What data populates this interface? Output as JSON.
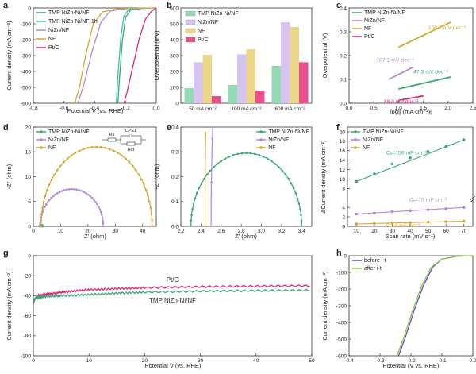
{
  "colors": {
    "tmp": "#3aa872",
    "nizn": "#b388d8",
    "nf": "#d4a72c",
    "ptc": "#e0257a",
    "tmp1h": "#39c2b8",
    "bar_tmp": "#92d9b4",
    "bar_nizn": "#d6c3ef",
    "bar_nf": "#ecd688",
    "bar_ptc": "#ec4f8f",
    "before": "#7b3fd6",
    "after": "#7fcf3a"
  },
  "chart_data": [
    {
      "id": "a",
      "panel_label": "a",
      "type": "line",
      "xlabel": "Potential V (vs. RHE)",
      "ylabel": "Current density (mA cm⁻²)",
      "xlim": [
        -0.8,
        0.0
      ],
      "ylim": [
        -600,
        0
      ],
      "xticks": [
        "-0.8",
        "-0.6",
        "-0.4",
        "-0.2",
        "0.0"
      ],
      "yticks": [
        "0",
        "-100",
        "-200",
        "-300",
        "-400",
        "-500",
        "-600"
      ],
      "legend": [
        "TMP NiZn-Ni/NF",
        "TMP NiZn-Ni/NF-1h",
        "NiZn/NF",
        "NF",
        "Pt/C"
      ],
      "series": [
        {
          "name": "TMP NiZn-Ni/NF",
          "color": "tmp",
          "x": [
            0.0,
            -0.1,
            -0.17,
            -0.2,
            -0.22,
            -0.24,
            -0.25
          ],
          "y": [
            0,
            -3,
            -15,
            -60,
            -200,
            -450,
            -600
          ]
        },
        {
          "name": "TMP NiZn-Ni/NF-1h",
          "color": "tmp1h",
          "x": [
            0.0,
            -0.12,
            -0.18,
            -0.21,
            -0.23,
            -0.25,
            -0.26
          ],
          "y": [
            0,
            -3,
            -12,
            -50,
            -180,
            -430,
            -600
          ]
        },
        {
          "name": "NiZn/NF",
          "color": "nizn",
          "x": [
            0.0,
            -0.2,
            -0.3,
            -0.36,
            -0.42,
            -0.47,
            -0.51
          ],
          "y": [
            0,
            -5,
            -20,
            -90,
            -280,
            -480,
            -600
          ]
        },
        {
          "name": "NF",
          "color": "nf",
          "x": [
            0.0,
            -0.25,
            -0.35,
            -0.41,
            -0.46,
            -0.5,
            -0.53
          ],
          "y": [
            0,
            -5,
            -25,
            -100,
            -300,
            -500,
            -600
          ]
        },
        {
          "name": "Pt/C",
          "color": "ptc",
          "x": [
            0.0,
            -0.03,
            -0.07,
            -0.11,
            -0.15,
            -0.19,
            -0.21
          ],
          "y": [
            0,
            -20,
            -70,
            -190,
            -360,
            -530,
            -600
          ]
        }
      ]
    },
    {
      "id": "b",
      "panel_label": "b",
      "type": "bar",
      "ylabel": "Overpotential (mV)",
      "ylim": [
        0,
        600
      ],
      "yticks": [
        "0",
        "100",
        "200",
        "300",
        "400",
        "500",
        "600"
      ],
      "categories": [
        "50 mA cm⁻²",
        "100 mA cm⁻²",
        "600 mA cm⁻²"
      ],
      "legend": [
        "TMP NiZn-Ni/NF",
        "NiZn/NF",
        "NF",
        "Pt/C"
      ],
      "series": [
        {
          "name": "TMP NiZn-Ni/NF",
          "color": "bar_tmp",
          "values": [
            95,
            115,
            235
          ]
        },
        {
          "name": "NiZn/NF",
          "color": "bar_nizn",
          "values": [
            258,
            308,
            510
          ]
        },
        {
          "name": "NF",
          "color": "bar_nf",
          "values": [
            305,
            340,
            480
          ]
        },
        {
          "name": "Pt/C",
          "color": "bar_ptc",
          "values": [
            45,
            80,
            258
          ]
        }
      ]
    },
    {
      "id": "c",
      "panel_label": "c",
      "type": "line",
      "xlabel": "log|j (mA cm⁻²)|",
      "ylabel": "Overpotential (V)",
      "xlim": [
        0.0,
        2.5
      ],
      "ylim": [
        0.0,
        0.4
      ],
      "xticks": [
        "0.0",
        "0.5",
        "1.0",
        "1.5",
        "2.0",
        "2.5"
      ],
      "yticks": [
        "0.0",
        "0.1",
        "0.2",
        "0.3",
        "0.4"
      ],
      "legend": [
        "TMP NiZn-Ni/NF",
        "NiZn/NF",
        "NF",
        "Pt/C"
      ],
      "annotations": [
        "100.7 mV dec⁻¹",
        "107.1 mV dec⁻¹",
        "47.3 mV dec⁻¹",
        "38.8 mV dec⁻¹"
      ],
      "series": [
        {
          "name": "TMP NiZn-Ni/NF",
          "color": "tmp",
          "x": [
            1.0,
            2.05
          ],
          "y": [
            0.06,
            0.11
          ]
        },
        {
          "name": "NiZn/NF",
          "color": "nizn",
          "x": [
            0.8,
            1.3
          ],
          "y": [
            0.1,
            0.152
          ]
        },
        {
          "name": "NF",
          "color": "nf",
          "x": [
            1.0,
            2.05
          ],
          "y": [
            0.235,
            0.34
          ]
        },
        {
          "name": "Pt/C",
          "color": "ptc",
          "x": [
            1.0,
            1.5
          ],
          "y": [
            0.012,
            0.031
          ]
        }
      ]
    },
    {
      "id": "d",
      "panel_label": "d",
      "type": "scatter",
      "xlabel": "Z' (ohm)",
      "ylabel": "-Z'' (ohm)",
      "xlim": [
        0,
        45
      ],
      "ylim": [
        0,
        20
      ],
      "xticks": [
        "0",
        "10",
        "20",
        "30",
        "40"
      ],
      "yticks": [
        "0",
        "5",
        "10",
        "15",
        "20"
      ],
      "legend": [
        "TMP NiZn-Ni/NF",
        "NiZn/NF",
        "NF"
      ],
      "circuit_labels": [
        "Rs",
        "CPE1",
        "Rct"
      ],
      "series": [
        {
          "name": "TMP NiZn-Ni/NF",
          "color": "tmp",
          "arc": {
            "start": 2.3,
            "end": 3.4,
            "height": 0.28
          }
        },
        {
          "name": "NiZn/NF",
          "color": "nizn",
          "arc": {
            "start": 2.5,
            "end": 25.6,
            "height": 7.5
          }
        },
        {
          "name": "NF",
          "color": "nf",
          "arc": {
            "start": 2.8,
            "end": 43.5,
            "height": 16.0
          }
        }
      ]
    },
    {
      "id": "e",
      "panel_label": "e",
      "type": "scatter",
      "xlabel": "Z' (ohm)",
      "ylabel": "-Z'' (ohm)",
      "xlim": [
        2.2,
        3.5
      ],
      "ylim": [
        0.0,
        0.4
      ],
      "xticks": [
        "2.2",
        "2.4",
        "2.6",
        "2.8",
        "3.0",
        "3.2",
        "3.4"
      ],
      "yticks": [
        "0.0",
        "0.1",
        "0.2",
        "0.3",
        "0.4"
      ],
      "legend": [
        "TMP NiZn-Ni/NF",
        "NiZn/NF",
        "NF"
      ],
      "series": [
        {
          "name": "TMP NiZn-Ni/NF",
          "color": "tmp",
          "arc": {
            "start": 2.3,
            "end": 3.4,
            "height": 0.295
          }
        },
        {
          "name": "NiZn/NF",
          "color": "nizn",
          "arc": {
            "start": 2.5,
            "end": 25.6,
            "height": 7.5
          }
        },
        {
          "name": "NF",
          "color": "nf",
          "arc": {
            "start": 2.44,
            "end": 43.5,
            "height": 16.0
          }
        }
      ]
    },
    {
      "id": "f",
      "panel_label": "f",
      "type": "scatter",
      "xlabel": "Scan rate (mV s⁻¹)",
      "ylabel": "ΔCurrent density (mA cm⁻²)",
      "xlim": [
        5,
        75
      ],
      "ylim": [
        0,
        21
      ],
      "xticks": [
        "10",
        "20",
        "30",
        "40",
        "50",
        "60",
        "70"
      ],
      "yticks": [
        "0",
        "2",
        "4",
        "8",
        "10",
        "12",
        "14",
        "16",
        "18",
        "20"
      ],
      "legend": [
        "TMP NiZn-Ni/NF",
        "NiZn/NF",
        "NF"
      ],
      "annotations": [
        "Cₑ=156 mF cm⁻²",
        "Cₑ=15 mF cm⁻²",
        "Cₑ=4 mF cm⁻²"
      ],
      "series": [
        {
          "name": "TMP NiZn-Ni/NF",
          "color": "tmp",
          "x": [
            10,
            20,
            30,
            40,
            50,
            60,
            70
          ],
          "y": [
            9.5,
            11.1,
            13.2,
            14.5,
            15.8,
            16.9,
            18.3
          ]
        },
        {
          "name": "NiZn/NF",
          "color": "nizn",
          "x": [
            10,
            20,
            30,
            40,
            50,
            60,
            70
          ],
          "y": [
            2.6,
            2.8,
            3.1,
            3.3,
            3.5,
            3.7,
            4.0
          ]
        },
        {
          "name": "NF",
          "color": "nf",
          "x": [
            10,
            20,
            30,
            40,
            50,
            60,
            70
          ],
          "y": [
            0.5,
            0.6,
            0.7,
            0.8,
            0.9,
            1.0,
            1.1
          ]
        }
      ]
    },
    {
      "id": "g",
      "panel_label": "g",
      "type": "line",
      "xlabel": "Potential V (vs. RHE)",
      "ylabel": "Current density (mA cm⁻²)",
      "xlim": [
        0,
        50
      ],
      "ylim": [
        -100,
        0
      ],
      "xticks": [
        "0",
        "10",
        "20",
        "30",
        "40",
        "50"
      ],
      "yticks": [
        "0",
        "-20",
        "-40",
        "-60",
        "-80",
        "-100"
      ],
      "labels": [
        "Pt/C",
        "TMP NiZn-Ni/NF"
      ],
      "series": [
        {
          "name": "Pt/C",
          "color": "ptc",
          "x": [
            0,
            0.3,
            1,
            3,
            6,
            10,
            15,
            20,
            30,
            40,
            50
          ],
          "y": [
            -48,
            -43,
            -40,
            -38,
            -36,
            -34,
            -33,
            -32,
            -31,
            -30.5,
            -30
          ]
        },
        {
          "name": "TMP NiZn-Ni/NF",
          "color": "tmp",
          "x": [
            0,
            0.5,
            2,
            5,
            10,
            15,
            20,
            30,
            40,
            50
          ],
          "y": [
            -46,
            -42,
            -41,
            -40,
            -39,
            -37.5,
            -36.5,
            -35.5,
            -35,
            -34.5
          ]
        }
      ]
    },
    {
      "id": "h",
      "panel_label": "h",
      "type": "line",
      "xlabel": "Potential (V vs. RHE)",
      "ylabel": "Current density (mA cm⁻²)",
      "xlim": [
        -0.4,
        0.0
      ],
      "ylim": [
        -600,
        0
      ],
      "xticks": [
        "-0.4",
        "-0.3",
        "-0.2",
        "-0.1",
        "0.0"
      ],
      "yticks": [
        "0",
        "-100",
        "-200",
        "-300",
        "-400",
        "-500",
        "-600"
      ],
      "legend": [
        "before i-t",
        "after i-t"
      ],
      "series": [
        {
          "name": "before i-t",
          "color": "before",
          "x": [
            0.0,
            -0.05,
            -0.1,
            -0.13,
            -0.16,
            -0.19,
            -0.22,
            -0.24
          ],
          "y": [
            0,
            -3,
            -20,
            -70,
            -180,
            -330,
            -500,
            -600
          ]
        },
        {
          "name": "after i-t",
          "color": "after",
          "x": [
            0.0,
            -0.05,
            -0.1,
            -0.135,
            -0.165,
            -0.195,
            -0.225,
            -0.245
          ],
          "y": [
            0,
            -3,
            -20,
            -70,
            -180,
            -330,
            -500,
            -600
          ]
        }
      ]
    }
  ]
}
